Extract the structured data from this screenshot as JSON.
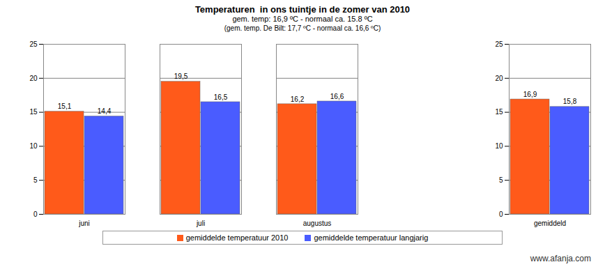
{
  "chart_data": {
    "type": "bar",
    "title": "Temperaturen  in ons tuintje in de zomer van 2010",
    "subtitle": [
      "gem. temp: 16,9 ºC - normaal ca. 15.8 ºC",
      "(gem. temp. De Bilt: 17,7 ºC - normaal ca. 16,6 ºC)"
    ],
    "annotations": [
      "www.afanja.com"
    ],
    "categories": [
      "juni",
      "juli",
      "augustus",
      null,
      "gemiddeld"
    ],
    "series": [
      {
        "name": "gemiddelde temperatuur 2010",
        "color": "#ff5a1a",
        "values": [
          15.1,
          19.5,
          16.2,
          null,
          16.9
        ],
        "value_labels": [
          "15,1",
          "19,5",
          "16,2",
          null,
          "16,9"
        ]
      },
      {
        "name": "gemiddelde temperatuur langjarig",
        "color": "#4a5cff",
        "values": [
          14.4,
          16.5,
          16.6,
          null,
          15.8
        ],
        "value_labels": [
          "14,4",
          "16,5",
          "16,6",
          null,
          "15,8"
        ]
      }
    ],
    "ylim": [
      0,
      25
    ],
    "yticks": [
      0,
      5,
      10,
      15,
      20,
      25
    ],
    "grid": true,
    "data_labels": true,
    "legend": "bottom"
  }
}
